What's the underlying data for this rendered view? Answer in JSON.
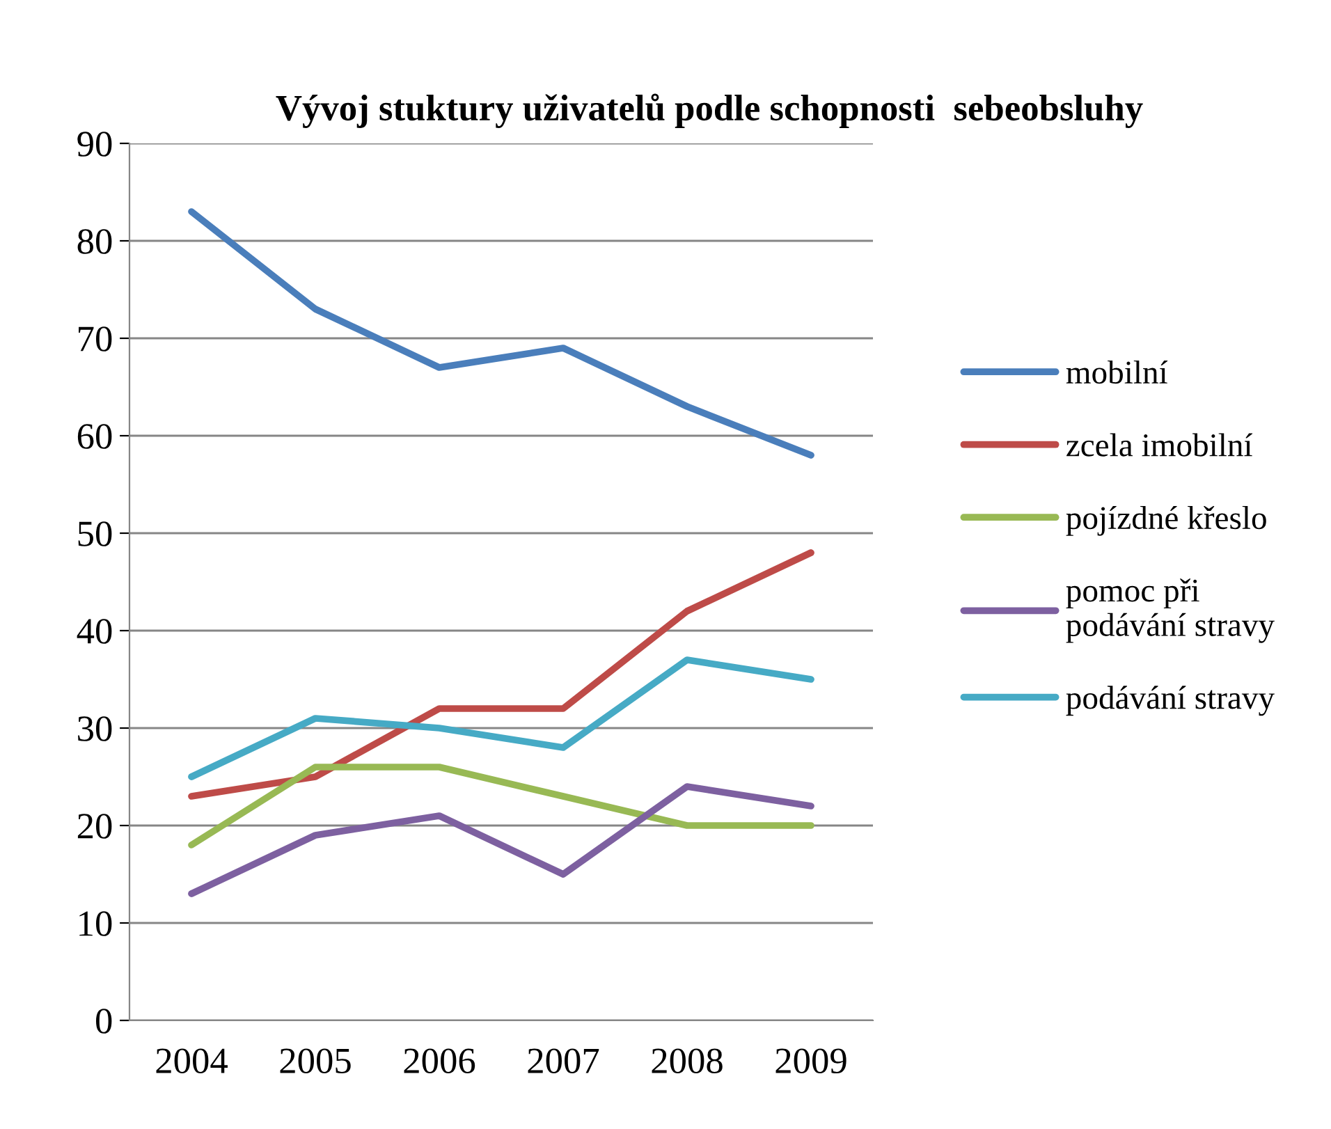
{
  "chart_data": {
    "type": "line",
    "title": "Vývoj stuktury uživatelů podle schopnosti  sebeobsluhy",
    "categories": [
      "2004",
      "2005",
      "2006",
      "2007",
      "2008",
      "2009"
    ],
    "series": [
      {
        "name": "mobilní",
        "color": "#4a7ebb",
        "values": [
          83,
          73,
          67,
          69,
          63,
          58
        ]
      },
      {
        "name": "zcela imobilní",
        "color": "#be4b48",
        "values": [
          23,
          25,
          32,
          32,
          42,
          48
        ]
      },
      {
        "name": "pojízdné křeslo",
        "color": "#98b954",
        "values": [
          18,
          26,
          26,
          23,
          20,
          20
        ]
      },
      {
        "name": "pomoc při\npodávání stravy",
        "color": "#7d60a0",
        "values": [
          13,
          19,
          21,
          15,
          24,
          22
        ]
      },
      {
        "name": "podávání stravy",
        "color": "#46aac5",
        "values": [
          25,
          31,
          30,
          28,
          37,
          35
        ]
      }
    ],
    "ylim": [
      0,
      90
    ],
    "yticks": [
      0,
      10,
      20,
      30,
      40,
      50,
      60,
      70,
      80,
      90
    ],
    "grid": "y",
    "legend": "right",
    "marker": "none",
    "line_style": "solid"
  }
}
